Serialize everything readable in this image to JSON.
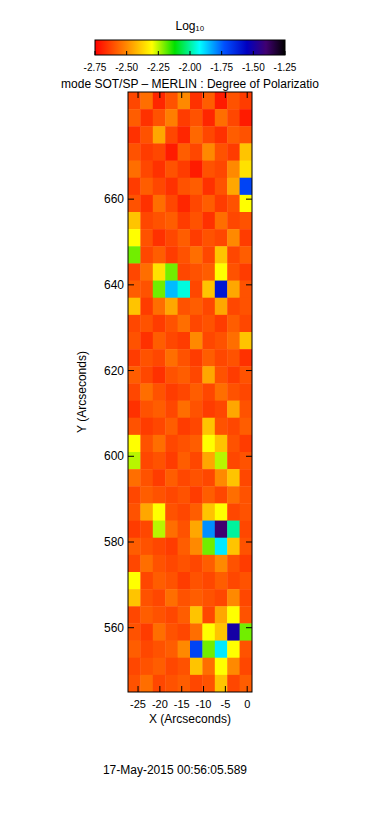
{
  "chart_data": {
    "type": "heatmap",
    "title": "mode SOT/SP – MERLIN : Degree of Polarizatio",
    "x_label": "X (Arcseconds)",
    "y_label": "Y (Arcseconds)",
    "annotations": [
      "17-May-2015 00:56:05.589"
    ],
    "xlim": [
      -27.3,
      1.1
    ],
    "ylim": [
      545,
      685
    ],
    "xticks": [
      -25,
      -20,
      -15,
      -10,
      -5,
      0
    ],
    "yticks": [
      560,
      580,
      600,
      620,
      640,
      660
    ],
    "colorbar": {
      "label": "Log₁₀",
      "range": [
        -2.75,
        -1.25
      ],
      "ticks": [
        -2.75,
        {
          "value": -2.5,
          "label": "-2.50"
        },
        -2.25,
        {
          "value": -2.0,
          "label": "-2.00"
        },
        -1.75,
        {
          "value": -1.5,
          "label": "-1.50"
        },
        -1.25
      ]
    },
    "cells": [
      [
        -2.62,
        -2.55,
        -2.68,
        -2.6,
        -2.5,
        -2.66,
        -2.58,
        -2.7,
        -2.6,
        -2.64
      ],
      [
        -2.58,
        -2.66,
        -2.6,
        -2.52,
        -2.64,
        -2.6,
        -2.68,
        -2.55,
        -2.62,
        -2.7
      ],
      [
        -2.66,
        -2.6,
        -2.45,
        -2.62,
        -2.68,
        -2.56,
        -2.62,
        -2.66,
        -2.58,
        -2.6
      ],
      [
        -2.6,
        -2.64,
        -2.62,
        -2.7,
        -2.58,
        -2.62,
        -2.5,
        -2.6,
        -2.64,
        -2.4
      ],
      [
        -2.55,
        -2.62,
        -2.66,
        -2.6,
        -2.64,
        -2.7,
        -2.6,
        -2.62,
        -2.5,
        -2.35
      ],
      [
        -2.64,
        -2.58,
        -2.62,
        -2.66,
        -2.6,
        -2.58,
        -2.66,
        -2.6,
        -2.45,
        -1.7
      ],
      [
        -2.6,
        -2.66,
        -2.55,
        -2.62,
        -2.68,
        -2.62,
        -2.58,
        -2.64,
        -2.6,
        -2.3
      ],
      [
        -2.4,
        -2.62,
        -2.6,
        -2.58,
        -2.64,
        -2.6,
        -2.66,
        -2.55,
        -2.62,
        -2.6
      ],
      [
        -2.3,
        -2.6,
        -2.66,
        -2.62,
        -2.58,
        -2.64,
        -2.6,
        -2.62,
        -2.5,
        -2.64
      ],
      [
        -2.2,
        -2.62,
        -2.58,
        -2.64,
        -2.6,
        -2.55,
        -2.62,
        -2.4,
        -2.62,
        -2.58
      ],
      [
        -2.62,
        -2.55,
        -2.35,
        -2.2,
        -2.62,
        -2.6,
        -2.58,
        -2.3,
        -2.6,
        -2.64
      ],
      [
        -2.58,
        -2.6,
        -2.2,
        -1.85,
        -1.95,
        -2.62,
        -2.4,
        -1.6,
        -2.45,
        -2.6
      ],
      [
        -2.4,
        -2.64,
        -2.55,
        -2.45,
        -2.6,
        -2.58,
        -2.62,
        -2.45,
        -2.62,
        -2.6
      ],
      [
        -2.62,
        -2.6,
        -2.64,
        -2.6,
        -2.55,
        -2.62,
        -2.6,
        -2.64,
        -2.58,
        -2.62
      ],
      [
        -2.6,
        -2.66,
        -2.58,
        -2.62,
        -2.64,
        -2.5,
        -2.62,
        -2.6,
        -2.55,
        -2.4
      ],
      [
        -2.64,
        -2.6,
        -2.62,
        -2.55,
        -2.6,
        -2.64,
        -2.58,
        -2.62,
        -2.6,
        -2.66
      ],
      [
        -2.58,
        -2.62,
        -2.66,
        -2.6,
        -2.58,
        -2.62,
        -2.45,
        -2.6,
        -2.64,
        -2.6
      ],
      [
        -2.62,
        -2.55,
        -2.6,
        -2.64,
        -2.62,
        -2.58,
        -2.62,
        -2.55,
        -2.6,
        -2.62
      ],
      [
        -2.66,
        -2.6,
        -2.58,
        -2.62,
        -2.55,
        -2.6,
        -2.64,
        -2.62,
        -2.45,
        -2.6
      ],
      [
        -2.6,
        -2.64,
        -2.62,
        -2.58,
        -2.64,
        -2.62,
        -2.4,
        -2.6,
        -2.62,
        -2.58
      ],
      [
        -2.3,
        -2.6,
        -2.55,
        -2.62,
        -2.6,
        -2.58,
        -2.3,
        -2.4,
        -2.6,
        -2.64
      ],
      [
        -2.25,
        -2.62,
        -2.6,
        -2.64,
        -2.58,
        -2.62,
        -2.45,
        -2.25,
        -2.62,
        -2.6
      ],
      [
        -2.55,
        -2.6,
        -2.64,
        -2.58,
        -2.62,
        -2.6,
        -2.62,
        -2.5,
        -2.4,
        -2.62
      ],
      [
        -2.62,
        -2.58,
        -2.6,
        -2.62,
        -2.6,
        -2.64,
        -2.58,
        -2.62,
        -2.55,
        -2.6
      ],
      [
        -2.6,
        -2.45,
        -2.3,
        -2.6,
        -2.62,
        -2.58,
        -2.4,
        -2.3,
        -2.62,
        -2.6
      ],
      [
        -2.64,
        -2.62,
        -2.25,
        -2.55,
        -2.6,
        -2.45,
        -1.8,
        -1.4,
        -2.0,
        -2.62
      ],
      [
        -2.58,
        -2.6,
        -2.62,
        -2.64,
        -2.58,
        -2.5,
        -2.2,
        -1.9,
        -2.4,
        -2.6
      ],
      [
        -2.62,
        -2.55,
        -2.6,
        -2.62,
        -2.6,
        -2.62,
        -2.58,
        -2.5,
        -2.6,
        -2.64
      ],
      [
        -2.3,
        -2.62,
        -2.58,
        -2.6,
        -2.64,
        -2.6,
        -2.62,
        -2.58,
        -2.62,
        -2.6
      ],
      [
        -2.4,
        -2.6,
        -2.62,
        -2.55,
        -2.6,
        -2.58,
        -2.6,
        -2.62,
        -2.5,
        -2.62
      ],
      [
        -2.62,
        -2.58,
        -2.6,
        -2.62,
        -2.58,
        -2.4,
        -2.62,
        -2.45,
        -2.3,
        -2.6
      ],
      [
        -2.6,
        -2.64,
        -2.55,
        -2.6,
        -2.62,
        -2.55,
        -2.3,
        -2.4,
        -1.5,
        -2.2
      ],
      [
        -2.58,
        -2.62,
        -2.6,
        -2.58,
        -2.5,
        -1.7,
        -2.2,
        -1.9,
        -2.3,
        -2.6
      ],
      [
        -2.62,
        -2.6,
        -2.58,
        -2.62,
        -2.6,
        -2.4,
        -2.55,
        -2.3,
        -2.5,
        -2.62
      ],
      [
        -2.6,
        -2.55,
        -2.62,
        -2.6,
        -2.58,
        -2.62,
        -2.6,
        -2.4,
        -2.62,
        -2.58
      ]
    ]
  }
}
